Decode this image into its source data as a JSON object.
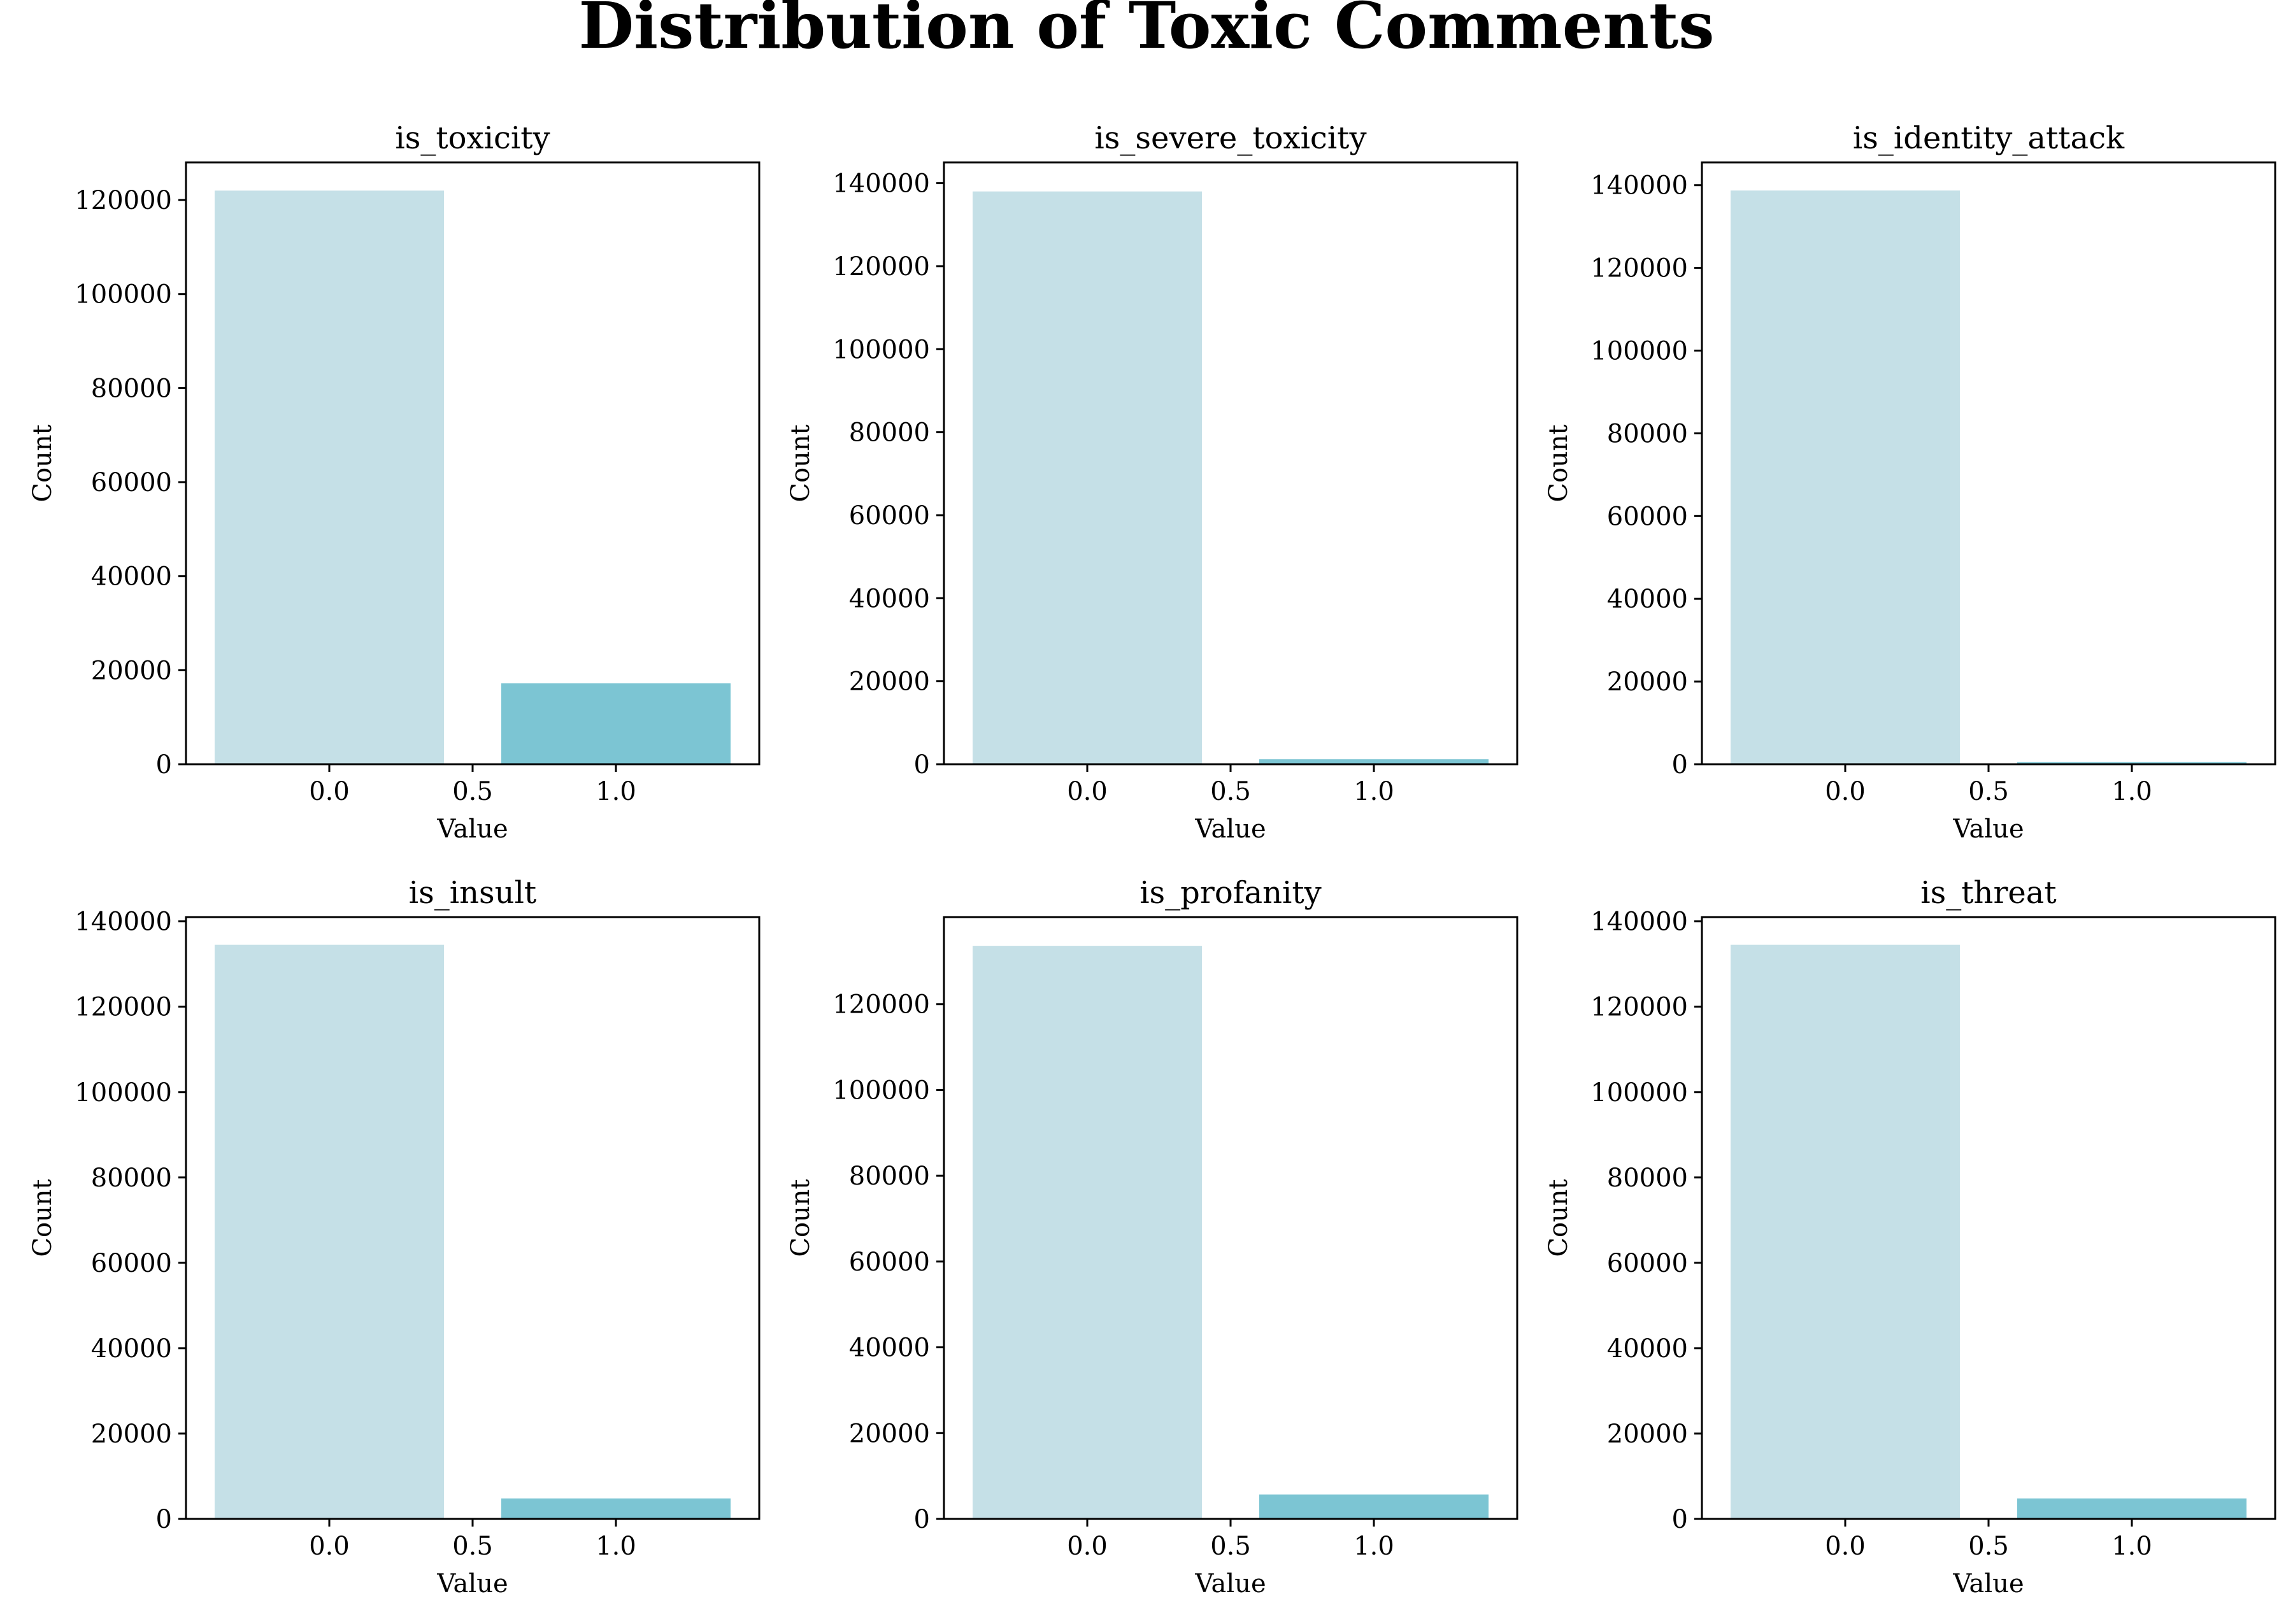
{
  "figure": {
    "title": "Distribution of Toxic Comments"
  },
  "colors": {
    "bar_zero": "#c5e0e7",
    "bar_one": "#7cc5d3",
    "axis": "#000000"
  },
  "chart_data": [
    {
      "type": "bar",
      "title": "is_toxicity",
      "xlabel": "Value",
      "ylabel": "Count",
      "categories": [
        0.0,
        1.0
      ],
      "values": [
        122000,
        17200
      ],
      "xlim": [
        -0.5,
        1.5
      ],
      "ylim": [
        0,
        128000
      ],
      "xticks": [
        "0.0",
        "0.5",
        "1.0"
      ],
      "yticks": [
        "0",
        "20000",
        "40000",
        "60000",
        "80000",
        "100000",
        "120000"
      ],
      "grid": false
    },
    {
      "type": "bar",
      "title": "is_severe_toxicity",
      "xlabel": "Value",
      "ylabel": "Count",
      "categories": [
        0.0,
        1.0
      ],
      "values": [
        138000,
        1200
      ],
      "xlim": [
        -0.5,
        1.5
      ],
      "ylim": [
        0,
        145000
      ],
      "xticks": [
        "0.0",
        "0.5",
        "1.0"
      ],
      "yticks": [
        "0",
        "20000",
        "40000",
        "60000",
        "80000",
        "100000",
        "120000",
        "140000"
      ],
      "grid": false
    },
    {
      "type": "bar",
      "title": "is_identity_attack",
      "xlabel": "Value",
      "ylabel": "Count",
      "categories": [
        0.0,
        1.0
      ],
      "values": [
        138700,
        500
      ],
      "xlim": [
        -0.5,
        1.5
      ],
      "ylim": [
        0,
        145500
      ],
      "xticks": [
        "0.0",
        "0.5",
        "1.0"
      ],
      "yticks": [
        "0",
        "20000",
        "40000",
        "60000",
        "80000",
        "100000",
        "120000",
        "140000"
      ],
      "grid": false
    },
    {
      "type": "bar",
      "title": "is_insult",
      "xlabel": "Value",
      "ylabel": "Count",
      "categories": [
        0.0,
        1.0
      ],
      "values": [
        134500,
        4800
      ],
      "xlim": [
        -0.5,
        1.5
      ],
      "ylim": [
        0,
        141000
      ],
      "xticks": [
        "0.0",
        "0.5",
        "1.0"
      ],
      "yticks": [
        "0",
        "20000",
        "40000",
        "60000",
        "80000",
        "100000",
        "120000",
        "140000"
      ],
      "grid": false
    },
    {
      "type": "bar",
      "title": "is_profanity",
      "xlabel": "Value",
      "ylabel": "Count",
      "categories": [
        0.0,
        1.0
      ],
      "values": [
        133600,
        5700
      ],
      "xlim": [
        -0.5,
        1.5
      ],
      "ylim": [
        0,
        140300
      ],
      "xticks": [
        "0.0",
        "0.5",
        "1.0"
      ],
      "yticks": [
        "0",
        "20000",
        "40000",
        "60000",
        "80000",
        "100000",
        "120000"
      ],
      "grid": false
    },
    {
      "type": "bar",
      "title": "is_threat",
      "xlabel": "Value",
      "ylabel": "Count",
      "categories": [
        0.0,
        1.0
      ],
      "values": [
        134500,
        4800
      ],
      "xlim": [
        -0.5,
        1.5
      ],
      "ylim": [
        0,
        141000
      ],
      "xticks": [
        "0.0",
        "0.5",
        "1.0"
      ],
      "yticks": [
        "0",
        "20000",
        "40000",
        "60000",
        "80000",
        "100000",
        "120000",
        "140000"
      ],
      "grid": false
    }
  ]
}
